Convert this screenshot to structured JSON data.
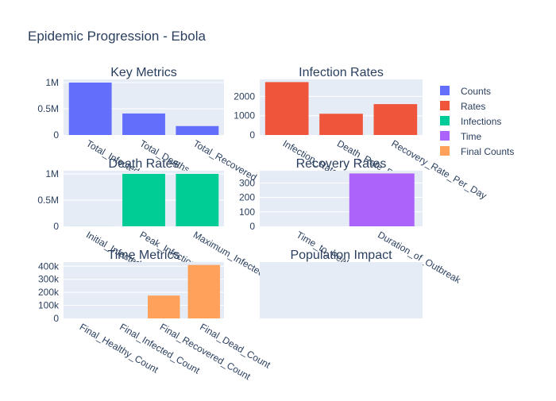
{
  "title": "Epidemic Progression - Ebola",
  "colors": {
    "plot_bg": "#e5ecf6",
    "grid": "#ffffff",
    "text": "#2a3f5f"
  },
  "legend": {
    "position": "right",
    "items": [
      {
        "name": "Counts",
        "color": "#636efa"
      },
      {
        "name": "Rates",
        "color": "#ef553b"
      },
      {
        "name": "Infections",
        "color": "#00cc96"
      },
      {
        "name": "Time",
        "color": "#ab63fa"
      },
      {
        "name": "Final Counts",
        "color": "#ffa15a"
      }
    ]
  },
  "chart_data": [
    {
      "type": "bar",
      "title": "Key Metrics",
      "series": [
        {
          "name": "Counts",
          "color": "#636efa",
          "values": [
            1000000,
            410000,
            170000
          ]
        }
      ],
      "categories": [
        "Total_Infected",
        "Total_Deaths",
        "Total_Recovered"
      ],
      "ylim": [
        0,
        1060000
      ],
      "yticks": [
        0,
        500000,
        1000000
      ],
      "ytick_labels": [
        "0",
        "0.5M",
        "1M"
      ],
      "grid": true
    },
    {
      "type": "bar",
      "title": "Infection Rates",
      "series": [
        {
          "name": "Rates",
          "color": "#ef553b",
          "values": [
            2740,
            1100,
            1600
          ]
        }
      ],
      "categories": [
        "Infection_Rate_Per_Day",
        "Death_Rate_Per_Day",
        "Recovery_Rate_Per_Day"
      ],
      "ylim": [
        0,
        2880
      ],
      "yticks": [
        0,
        1000,
        2000
      ],
      "ytick_labels": [
        "0",
        "1000",
        "2000"
      ],
      "grid": true
    },
    {
      "type": "bar",
      "title": "Death Rates",
      "series": [
        {
          "name": "Infections",
          "color": "#00cc96",
          "values": [
            1000,
            1000000,
            1000000
          ]
        }
      ],
      "categories": [
        "Initial_Infected",
        "Peak_Infection_Rate",
        "Maximum_Infected_Simultaneously"
      ],
      "ylim": [
        0,
        1060000
      ],
      "yticks": [
        0,
        500000,
        1000000
      ],
      "ytick_labels": [
        "0",
        "0.5M",
        "1M"
      ],
      "grid": true
    },
    {
      "type": "bar",
      "title": "Recovery Rates",
      "series": [
        {
          "name": "Time",
          "color": "#ab63fa",
          "values": [
            0,
            365
          ]
        }
      ],
      "categories": [
        "Time_to_Peak",
        "Duration_of_Outbreak"
      ],
      "ylim": [
        0,
        384
      ],
      "yticks": [
        0,
        100,
        200,
        300
      ],
      "ytick_labels": [
        "0",
        "100",
        "200",
        "300"
      ],
      "grid": true
    },
    {
      "type": "bar",
      "title": "Time Metrics",
      "series": [
        {
          "name": "Final Counts",
          "color": "#ffa15a",
          "values": [
            0,
            0,
            175000,
            410000
          ]
        }
      ],
      "categories": [
        "Final_Healthy_Count",
        "Final_Infected_Count",
        "Final_Recovered_Count",
        "Final_Dead_Count"
      ],
      "ylim": [
        0,
        432000
      ],
      "yticks": [
        0,
        100000,
        200000,
        300000,
        400000
      ],
      "ytick_labels": [
        "0",
        "100k",
        "200k",
        "300k",
        "400k"
      ],
      "grid": true
    },
    {
      "type": "bar",
      "title": "Population Impact",
      "series": [],
      "categories": []
    }
  ]
}
